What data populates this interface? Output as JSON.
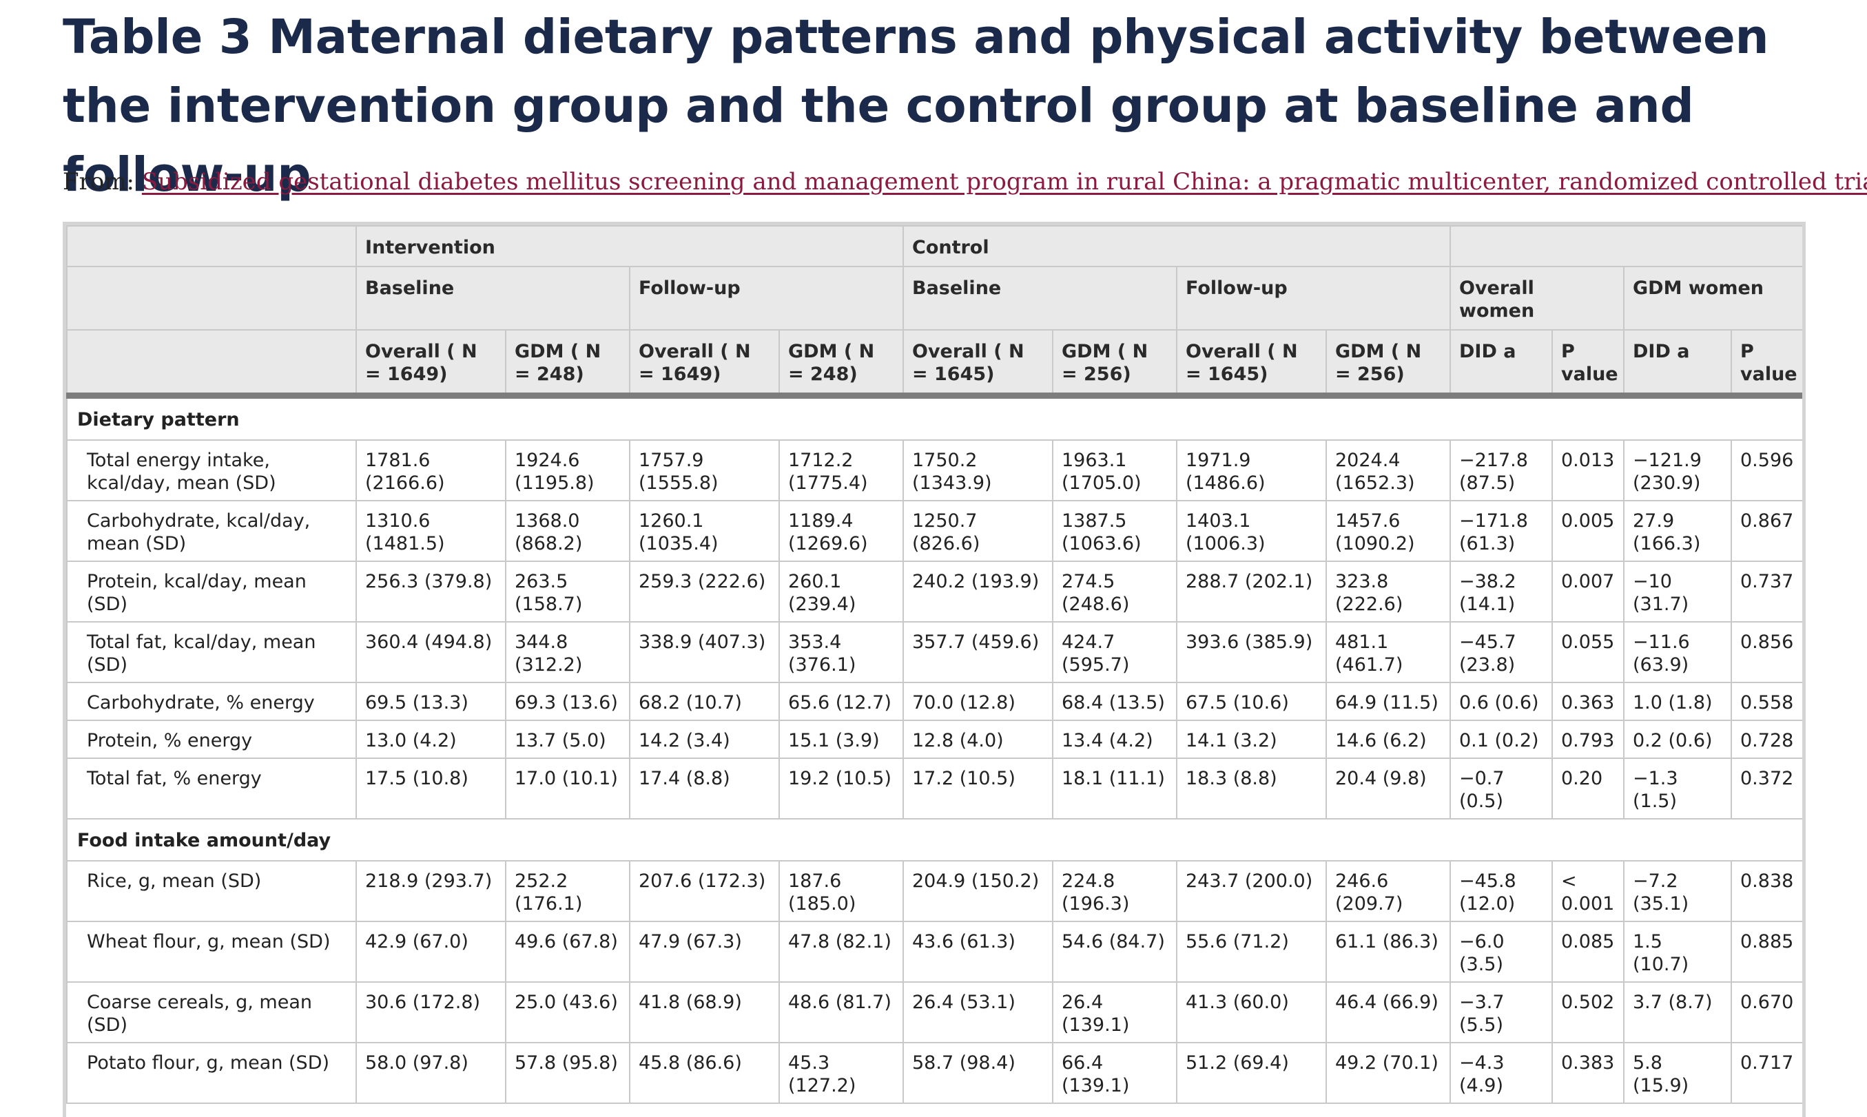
{
  "title": "Table 3 Maternal dietary patterns and physical activity between the intervention group and the control group at baseline and follow-up",
  "from_label": "From:",
  "from_link": "Subsidized gestational diabetes mellitus screening and management program in rural China: a pragmatic multicenter, randomized controlled trial",
  "header": {
    "intervention": "Intervention",
    "control": "Control",
    "baseline_1": "Baseline",
    "followup_1": "Follow-up",
    "baseline_2": "Baseline",
    "followup_2": "Follow-up",
    "overall_women": "Overall women",
    "gdm_women": "GDM women",
    "cols": [
      "Overall ( N = 1649)",
      "GDM ( N = 248)",
      "Overall ( N = 1649)",
      "GDM ( N = 248)",
      "Overall ( N = 1645)",
      "GDM ( N = 256)",
      "Overall ( N = 1645)",
      "GDM ( N = 256)",
      "DID a",
      "P value",
      "DID a",
      "P value"
    ]
  },
  "sections": [
    {
      "title": "Dietary pattern",
      "rows": [
        {
          "label": "Total energy intake, kcal/day, mean (SD)",
          "values": [
            "1781.6 (2166.6)",
            "1924.6 (1195.8)",
            "1757.9 (1555.8)",
            "1712.2 (1775.4)",
            "1750.2 (1343.9)",
            "1963.1 (1705.0)",
            "1971.9 (1486.6)",
            "2024.4 (1652.3)",
            "−217.8 (87.5)",
            "0.013",
            "−121.9 (230.9)",
            "0.596"
          ]
        },
        {
          "label": "Carbohydrate, kcal/day, mean (SD)",
          "values": [
            "1310.6 (1481.5)",
            "1368.0 (868.2)",
            "1260.1 (1035.4)",
            "1189.4 (1269.6)",
            "1250.7 (826.6)",
            "1387.5 (1063.6)",
            "1403.1 (1006.3)",
            "1457.6 (1090.2)",
            "−171.8 (61.3)",
            "0.005",
            "27.9 (166.3)",
            "0.867"
          ]
        },
        {
          "label": "Protein, kcal/day, mean (SD)",
          "values": [
            "256.3 (379.8)",
            "263.5 (158.7)",
            "259.3 (222.6)",
            "260.1 (239.4)",
            "240.2 (193.9)",
            "274.5 (248.6)",
            "288.7 (202.1)",
            "323.8 (222.6)",
            "−38.2 (14.1)",
            "0.007",
            "−10 (31.7)",
            "0.737"
          ]
        },
        {
          "label": "Total fat, kcal/day, mean (SD)",
          "values": [
            "360.4 (494.8)",
            "344.8 (312.2)",
            "338.9 (407.3)",
            "353.4 (376.1)",
            "357.7 (459.6)",
            "424.7 (595.7)",
            "393.6 (385.9)",
            "481.1 (461.7)",
            "−45.7 (23.8)",
            "0.055",
            "−11.6 (63.9)",
            "0.856"
          ]
        },
        {
          "label": "Carbohydrate, % energy",
          "values": [
            "69.5 (13.3)",
            "69.3 (13.6)",
            "68.2 (10.7)",
            "65.6 (12.7)",
            "70.0 (12.8)",
            "68.4 (13.5)",
            "67.5 (10.6)",
            "64.9 (11.5)",
            "0.6 (0.6)",
            "0.363",
            "1.0 (1.8)",
            "0.558"
          ]
        },
        {
          "label": "Protein, % energy",
          "values": [
            "13.0 (4.2)",
            "13.7 (5.0)",
            "14.2 (3.4)",
            "15.1 (3.9)",
            "12.8 (4.0)",
            "13.4 (4.2)",
            "14.1 (3.2)",
            "14.6 (6.2)",
            "0.1 (0.2)",
            "0.793",
            "0.2 (0.6)",
            "0.728"
          ]
        },
        {
          "label": "Total fat, % energy",
          "values": [
            "17.5 (10.8)",
            "17.0 (10.1)",
            "17.4 (8.8)",
            "19.2 (10.5)",
            "17.2 (10.5)",
            "18.1 (11.1)",
            "18.3 (8.8)",
            "20.4 (9.8)",
            "−0.7 (0.5)",
            "0.20",
            "−1.3 (1.5)",
            "0.372"
          ]
        }
      ]
    },
    {
      "title": "Food intake amount/day",
      "rows": [
        {
          "label": "Rice, g, mean      (SD)",
          "values": [
            "218.9 (293.7)",
            "252.2 (176.1)",
            "207.6 (172.3)",
            "187.6 (185.0)",
            "204.9 (150.2)",
            "224.8 (196.3)",
            "243.7 (200.0)",
            "246.6 (209.7)",
            "−45.8 (12.0)",
            "< 0.001",
            "−7.2 (35.1)",
            "0.838"
          ]
        },
        {
          "label": "Wheat flour, g, mean (SD)",
          "values": [
            "42.9 (67.0)",
            "49.6 (67.8)",
            "47.9 (67.3)",
            "47.8 (82.1)",
            "43.6 (61.3)",
            "54.6 (84.7)",
            "55.6 (71.2)",
            "61.1 (86.3)",
            "−6.0 (3.5)",
            "0.085",
            "1.5 (10.7)",
            "0.885"
          ]
        },
        {
          "label": "Coarse cereals, g, mean (SD)",
          "values": [
            "30.6 (172.8)",
            "25.0 (43.6)",
            "41.8 (68.9)",
            "48.6 (81.7)",
            "26.4 (53.1)",
            "26.4 (139.1)",
            "41.3 (60.0)",
            "46.4 (66.9)",
            "−3.7 (5.5)",
            "0.502",
            "3.7 (8.7)",
            "0.670"
          ]
        },
        {
          "label": "Potato flour, g, mean (SD)",
          "values": [
            "58.0 (97.8)",
            "57.8 (95.8)",
            "45.8 (86.6)",
            "45.3 (127.2)",
            "58.7 (98.4)",
            "66.4 (139.1)",
            "51.2 (69.4)",
            "49.2 (70.1)",
            "−4.3 (4.9)",
            "0.383",
            "5.8 (15.9)",
            "0.717"
          ]
        }
      ]
    }
  ]
}
